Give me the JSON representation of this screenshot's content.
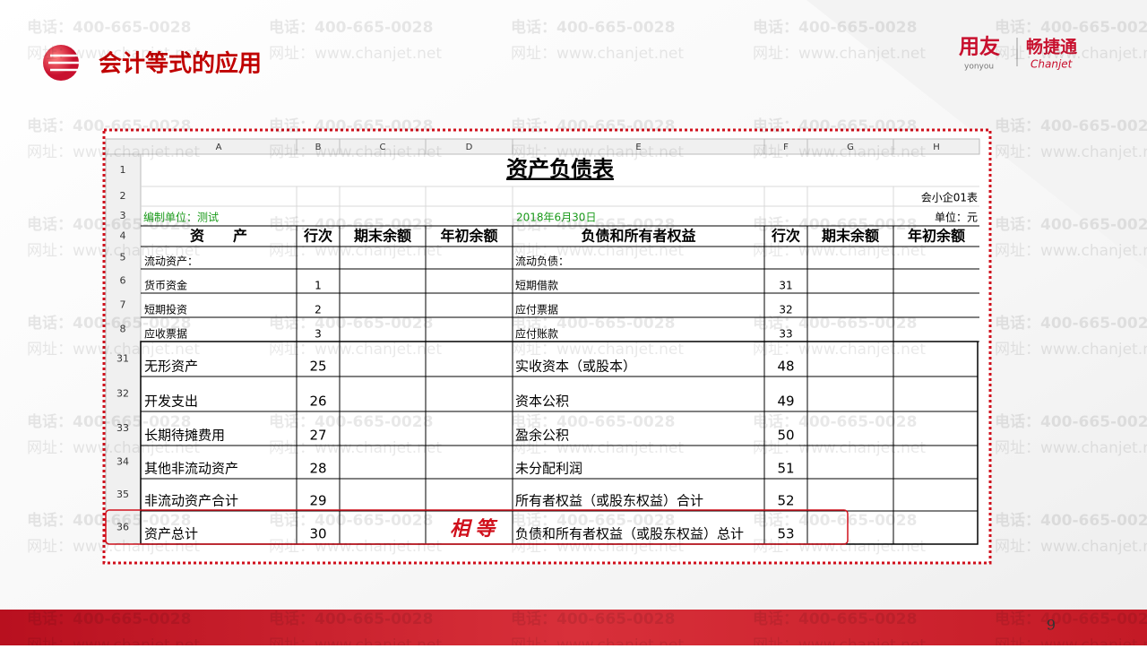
{
  "header": {
    "title": "会计等式的应用",
    "logo": {
      "brand": "用友",
      "brand_sub": "yonyou",
      "product": "畅捷通",
      "product_sub": "Chanjet"
    }
  },
  "watermark": {
    "phone": "电话：400-665-0028",
    "url": "网址：www.chanjet.net"
  },
  "sheet": {
    "columns": [
      "A",
      "B",
      "C",
      "D",
      "E",
      "F",
      "G",
      "H"
    ],
    "title_row": "1",
    "title": "资产负债表",
    "form_row": "2",
    "form_no": "会小企01表",
    "info_row": "3",
    "company": "编制单位：测试",
    "date": "2018年6月30日",
    "unit": "单位：元",
    "header_row": "4",
    "headers": [
      "资　　产",
      "行次",
      "期末余额",
      "年初余额",
      "负债和所有者权益",
      "行次",
      "期末余额",
      "年初余额"
    ],
    "upper_rows": [
      {
        "row": "5",
        "asset": "流动资产：",
        "liability": "流动负债："
      },
      {
        "row": "6",
        "asset": "货币资金",
        "asset_line": 1,
        "liability": "短期借款",
        "liability_line": 31
      },
      {
        "row": "7",
        "asset": "短期投资",
        "asset_line": 2,
        "liability": "应付票据",
        "liability_line": 32
      },
      {
        "row": "8",
        "asset": "应收票据",
        "asset_line": 3,
        "liability": "应付账款",
        "liability_line": 33
      }
    ],
    "lower_rows": [
      {
        "row": "31",
        "asset": "无形资产",
        "asset_line": 25,
        "liability": "实收资本（或股本）",
        "liability_line": 48
      },
      {
        "row": "32",
        "asset": "开发支出",
        "asset_line": 26,
        "liability": "资本公积",
        "liability_line": 49
      },
      {
        "row": "33",
        "asset": "长期待摊费用",
        "asset_line": 27,
        "liability": "盈余公积",
        "liability_line": 50
      },
      {
        "row": "34",
        "asset": "其他非流动资产",
        "asset_line": 28,
        "liability": "未分配利润",
        "liability_line": 51
      },
      {
        "row": "35",
        "asset": "非流动资产合计",
        "asset_line": 29,
        "liability": "所有者权益（或股东权益）合计",
        "liability_line": 52
      },
      {
        "row": "36",
        "asset": "资产总计",
        "asset_line": 30,
        "liability": "负债和所有者权益（或股东权益）总计",
        "liability_line": 53
      }
    ]
  },
  "annotation": "相等",
  "page_number": "9"
}
